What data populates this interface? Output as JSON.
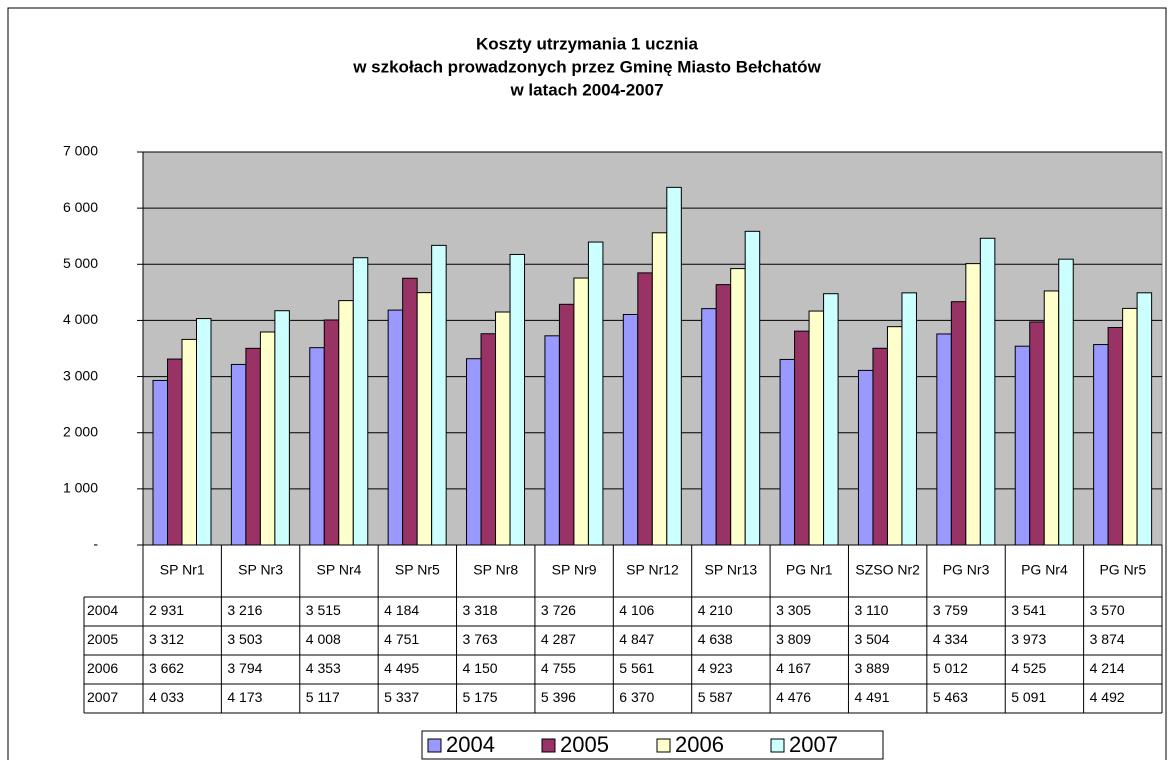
{
  "chart_data": {
    "type": "bar",
    "title": [
      "Koszty utrzymania 1 ucznia",
      "w szkołach prowadzonych przez Gminę Miasto Bełchatów",
      "w latach 2004-2007"
    ],
    "categories": [
      "SP Nr1",
      "SP Nr3",
      "SP Nr4",
      "SP Nr5",
      "SP Nr8",
      "SP Nr9",
      "SP Nr12",
      "SP Nr13",
      "PG Nr1",
      "SZSO Nr2",
      "PG Nr3",
      "PG Nr4",
      "PG Nr5"
    ],
    "series": [
      {
        "name": "2004",
        "color": "#9999ff",
        "values": [
          2931,
          3216,
          3515,
          4184,
          3318,
          3726,
          4106,
          4210,
          3305,
          3110,
          3759,
          3541,
          3570
        ],
        "value_labels": [
          "2 931",
          "3 216",
          "3 515",
          "4 184",
          "3 318",
          "3 726",
          "4 106",
          "4 210",
          "3 305",
          "3 110",
          "3 759",
          "3 541",
          "3 570"
        ]
      },
      {
        "name": "2005",
        "color": "#993366",
        "values": [
          3312,
          3503,
          4008,
          4751,
          3763,
          4287,
          4847,
          4638,
          3809,
          3504,
          4334,
          3973,
          3874
        ],
        "value_labels": [
          "3 312",
          "3 503",
          "4 008",
          "4 751",
          "3 763",
          "4 287",
          "4 847",
          "4 638",
          "3 809",
          "3 504",
          "4 334",
          "3 973",
          "3 874"
        ]
      },
      {
        "name": "2006",
        "color": "#ffffcc",
        "values": [
          3662,
          3794,
          4353,
          4495,
          4150,
          4755,
          5561,
          4923,
          4167,
          3889,
          5012,
          4525,
          4214
        ],
        "value_labels": [
          "3 662",
          "3 794",
          "4 353",
          "4 495",
          "4 150",
          "4 755",
          "5 561",
          "4 923",
          "4 167",
          "3 889",
          "5 012",
          "4 525",
          "4 214"
        ]
      },
      {
        "name": "2007",
        "color": "#ccffff",
        "values": [
          4033,
          4173,
          5117,
          5337,
          5175,
          5396,
          6370,
          5587,
          4476,
          4491,
          5463,
          5091,
          4492
        ],
        "value_labels": [
          "4 033",
          "4 173",
          "5 117",
          "5 337",
          "5 175",
          "5 396",
          "6 370",
          "5 587",
          "4 476",
          "4 491",
          "5 463",
          "5 091",
          "4 492"
        ]
      }
    ],
    "ylim": [
      0,
      7000
    ],
    "yticks": [
      {
        "value": 0,
        "label": "-"
      },
      {
        "value": 1000,
        "label": "1 000"
      },
      {
        "value": 2000,
        "label": "2 000"
      },
      {
        "value": 3000,
        "label": "3 000"
      },
      {
        "value": 4000,
        "label": "4 000"
      },
      {
        "value": 5000,
        "label": "5 000"
      },
      {
        "value": 6000,
        "label": "6 000"
      },
      {
        "value": 7000,
        "label": "7 000"
      }
    ],
    "grid": true,
    "legend": "bottom"
  }
}
